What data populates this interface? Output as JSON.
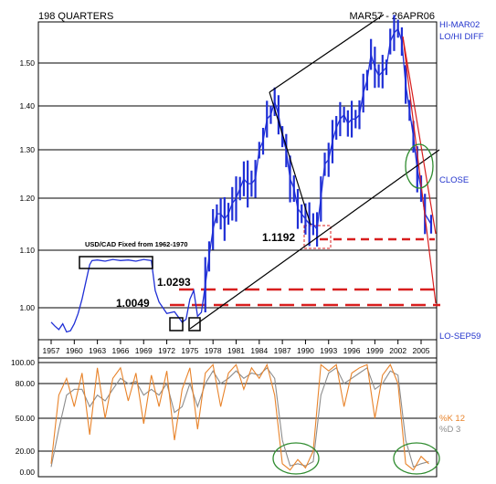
{
  "header": {
    "left": "198 QUARTERS",
    "right": "MAR57 - 26APR06"
  },
  "colors": {
    "price": "#1f2fd6",
    "red": "#d81e1e",
    "k": "#e8832a",
    "d": "#8c8c8c",
    "circle": "#2e8b2e",
    "grid": "#000000",
    "label_blue": "#2233cc"
  },
  "chart_data": [
    {
      "type": "line",
      "title": "",
      "y_ticks": [
        "1.50",
        "1.40",
        "1.30",
        "1.20",
        "1.10",
        "1.00"
      ],
      "x_ticks": [
        "1957",
        "1960",
        "1963",
        "1966",
        "1969",
        "1972",
        "1975",
        "1978",
        "1981",
        "1984",
        "1987",
        "1990",
        "1993",
        "1996",
        "1999",
        "2002",
        "2005"
      ],
      "right_labels": {
        "top1": "HI-MAR02",
        "top2": "LO/HI DIFF",
        "close": "CLOSE",
        "bottom": "LO-SEP59"
      },
      "annotations": {
        "fixed": "USD/CAD Fixed from 1962-1970",
        "v1": "1.0293",
        "v2": "1.0049",
        "v3": "1.1192"
      },
      "series": [
        {
          "values": [
            [
              1957.0,
              0.975
            ],
            [
              1957.5,
              0.968
            ],
            [
              1958.0,
              0.962
            ],
            [
              1958.5,
              0.972
            ],
            [
              1959.0,
              0.958
            ],
            [
              1959.5,
              0.96
            ],
            [
              1960.0,
              0.972
            ],
            [
              1960.5,
              0.99
            ],
            [
              1961.0,
              1.015
            ],
            [
              1961.5,
              1.045
            ],
            [
              1962.0,
              1.075
            ],
            [
              1962.3,
              1.082
            ],
            [
              1963.0,
              1.083
            ],
            [
              1964.0,
              1.081
            ],
            [
              1965.0,
              1.084
            ],
            [
              1966.0,
              1.082
            ],
            [
              1967.0,
              1.083
            ],
            [
              1968.0,
              1.081
            ],
            [
              1969.0,
              1.084
            ],
            [
              1970.0,
              1.082
            ],
            [
              1970.5,
              1.03
            ],
            [
              1971.0,
              1.01
            ],
            [
              1972.0,
              0.99
            ],
            [
              1973.0,
              0.993
            ],
            [
              1974.0,
              0.975
            ],
            [
              1974.5,
              0.98
            ],
            [
              1975.0,
              1.015
            ],
            [
              1975.5,
              1.03
            ],
            [
              1976.0,
              0.985
            ],
            [
              1976.5,
              0.992
            ],
            [
              1977.0,
              1.04
            ],
            [
              1977.5,
              1.09
            ],
            [
              1978.0,
              1.14
            ],
            [
              1978.5,
              1.17
            ],
            [
              1979.0,
              1.17
            ],
            [
              1979.5,
              1.16
            ],
            [
              1980.0,
              1.17
            ],
            [
              1980.5,
              1.19
            ],
            [
              1981.0,
              1.2
            ],
            [
              1981.5,
              1.22
            ],
            [
              1982.0,
              1.24
            ],
            [
              1982.5,
              1.23
            ],
            [
              1983.0,
              1.23
            ],
            [
              1983.5,
              1.24
            ],
            [
              1984.0,
              1.3
            ],
            [
              1984.5,
              1.32
            ],
            [
              1985.0,
              1.37
            ],
            [
              1985.5,
              1.38
            ],
            [
              1986.0,
              1.41
            ],
            [
              1986.5,
              1.38
            ],
            [
              1987.0,
              1.33
            ],
            [
              1987.5,
              1.3
            ],
            [
              1988.0,
              1.24
            ],
            [
              1988.5,
              1.22
            ],
            [
              1989.0,
              1.18
            ],
            [
              1989.5,
              1.17
            ],
            [
              1990.0,
              1.16
            ],
            [
              1990.5,
              1.15
            ],
            [
              1991.0,
              1.15
            ],
            [
              1991.5,
              1.14
            ],
            [
              1992.0,
              1.2
            ],
            [
              1992.5,
              1.27
            ],
            [
              1993.0,
              1.28
            ],
            [
              1993.5,
              1.32
            ],
            [
              1994.0,
              1.35
            ],
            [
              1994.5,
              1.37
            ],
            [
              1995.0,
              1.38
            ],
            [
              1995.5,
              1.36
            ],
            [
              1996.0,
              1.37
            ],
            [
              1996.5,
              1.37
            ],
            [
              1997.0,
              1.38
            ],
            [
              1997.5,
              1.43
            ],
            [
              1998.0,
              1.46
            ],
            [
              1998.5,
              1.52
            ],
            [
              1999.0,
              1.49
            ],
            [
              1999.5,
              1.47
            ],
            [
              2000.0,
              1.48
            ],
            [
              2000.5,
              1.49
            ],
            [
              2001.0,
              1.55
            ],
            [
              2001.5,
              1.57
            ],
            [
              2002.0,
              1.58
            ],
            [
              2002.5,
              1.55
            ],
            [
              2003.0,
              1.45
            ],
            [
              2003.5,
              1.39
            ],
            [
              2004.0,
              1.33
            ],
            [
              2004.5,
              1.26
            ],
            [
              2005.0,
              1.22
            ],
            [
              2005.5,
              1.17
            ],
            [
              2006.3,
              1.15
            ]
          ]
        }
      ]
    },
    {
      "type": "line",
      "title": "",
      "y_ticks": [
        "100.00",
        "80.00",
        "50.00",
        "20.00",
        "0.00"
      ],
      "series": [
        {
          "name": "%K 12",
          "values": [
            [
              1957,
              8
            ],
            [
              1958,
              70
            ],
            [
              1959,
              85
            ],
            [
              1960,
              60
            ],
            [
              1961,
              90
            ],
            [
              1962,
              35
            ],
            [
              1963,
              95
            ],
            [
              1964,
              50
            ],
            [
              1965,
              85
            ],
            [
              1966,
              95
            ],
            [
              1967,
              65
            ],
            [
              1968,
              90
            ],
            [
              1969,
              45
            ],
            [
              1970,
              88
            ],
            [
              1971,
              60
            ],
            [
              1972,
              92
            ],
            [
              1973,
              30
            ],
            [
              1974,
              75
            ],
            [
              1975,
              95
            ],
            [
              1976,
              40
            ],
            [
              1977,
              90
            ],
            [
              1978,
              98
            ],
            [
              1979,
              60
            ],
            [
              1980,
              90
            ],
            [
              1981,
              98
            ],
            [
              1982,
              75
            ],
            [
              1983,
              95
            ],
            [
              1984,
              85
            ],
            [
              1985,
              98
            ],
            [
              1986,
              70
            ],
            [
              1987,
              8
            ],
            [
              1988,
              2
            ],
            [
              1989,
              12
            ],
            [
              1990,
              4
            ],
            [
              1991,
              20
            ],
            [
              1992,
              98
            ],
            [
              1993,
              92
            ],
            [
              1994,
              98
            ],
            [
              1995,
              60
            ],
            [
              1996,
              90
            ],
            [
              1997,
              95
            ],
            [
              1998,
              98
            ],
            [
              1999,
              50
            ],
            [
              2000,
              88
            ],
            [
              2001,
              98
            ],
            [
              2002,
              80
            ],
            [
              2003,
              8
            ],
            [
              2004,
              2
            ],
            [
              2005,
              15
            ],
            [
              2006,
              8
            ]
          ]
        },
        {
          "name": "%D 3",
          "values": [
            [
              1957,
              5
            ],
            [
              1958,
              40
            ],
            [
              1959,
              70
            ],
            [
              1960,
              75
            ],
            [
              1961,
              75
            ],
            [
              1962,
              60
            ],
            [
              1963,
              70
            ],
            [
              1964,
              65
            ],
            [
              1965,
              75
            ],
            [
              1966,
              85
            ],
            [
              1967,
              80
            ],
            [
              1968,
              82
            ],
            [
              1969,
              70
            ],
            [
              1970,
              75
            ],
            [
              1971,
              70
            ],
            [
              1972,
              80
            ],
            [
              1973,
              55
            ],
            [
              1974,
              60
            ],
            [
              1975,
              80
            ],
            [
              1976,
              60
            ],
            [
              1977,
              80
            ],
            [
              1978,
              92
            ],
            [
              1979,
              80
            ],
            [
              1980,
              85
            ],
            [
              1981,
              92
            ],
            [
              1982,
              85
            ],
            [
              1983,
              90
            ],
            [
              1984,
              88
            ],
            [
              1985,
              95
            ],
            [
              1986,
              85
            ],
            [
              1987,
              30
            ],
            [
              1988,
              6
            ],
            [
              1989,
              8
            ],
            [
              1990,
              6
            ],
            [
              1991,
              10
            ],
            [
              1992,
              70
            ],
            [
              1993,
              90
            ],
            [
              1994,
              95
            ],
            [
              1995,
              80
            ],
            [
              1996,
              85
            ],
            [
              1997,
              90
            ],
            [
              1998,
              95
            ],
            [
              1999,
              75
            ],
            [
              2000,
              80
            ],
            [
              2001,
              92
            ],
            [
              2002,
              88
            ],
            [
              2003,
              30
            ],
            [
              2004,
              5
            ],
            [
              2005,
              8
            ],
            [
              2006,
              10
            ]
          ]
        }
      ]
    }
  ]
}
